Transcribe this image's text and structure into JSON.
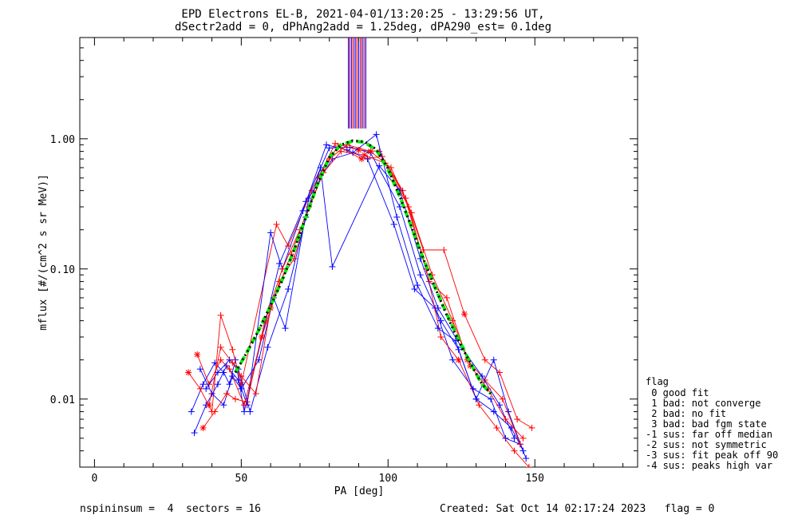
{
  "chart_data": {
    "type": "line",
    "title": "EPD Electrons EL-B, 2021-04-01/13:20:25 - 13:29:56 UT,",
    "subtitle": "dSectr2add = 0, dPhAng2add = 1.25deg, dPA290_est=   0.1deg",
    "xlabel": "PA [deg]",
    "ylabel": "mflux [#/(cm^2 s sr MeV)]",
    "xlim": [
      -5,
      185
    ],
    "ylim": [
      0.003,
      6
    ],
    "yscale": "log",
    "xticks": [
      0,
      50,
      100,
      150
    ],
    "xtick_labels": [
      "0",
      "50",
      "100",
      "150"
    ],
    "yticks": [
      0.01,
      0.1,
      1.0
    ],
    "ytick_labels": [
      "0.01",
      "0.10",
      "1.00"
    ],
    "grid": false,
    "colors": {
      "blue": "#0000ff",
      "red": "#ff0000",
      "green": "#00ee00",
      "black": "#000000"
    },
    "series": [
      {
        "color": "blue",
        "x": [
          33,
          37,
          41,
          44,
          46,
          48,
          51,
          63,
          72,
          80,
          87,
          94,
          104,
          111,
          118,
          124,
          130,
          136,
          142,
          146
        ],
        "y": [
          0.008,
          0.013,
          0.019,
          0.016,
          0.013,
          0.02,
          0.008,
          0.11,
          0.33,
          0.85,
          0.86,
          0.78,
          0.3,
          0.09,
          0.04,
          0.024,
          0.01,
          0.008,
          0.006,
          0.004
        ]
      },
      {
        "color": "red",
        "x": [
          32,
          36,
          40,
          43,
          47,
          50,
          62,
          66,
          74,
          82,
          90,
          97,
          106,
          112,
          119,
          126,
          133,
          138,
          144,
          149
        ],
        "y": [
          0.016,
          0.012,
          0.008,
          0.044,
          0.024,
          0.013,
          0.22,
          0.15,
          0.4,
          0.92,
          0.82,
          0.8,
          0.35,
          0.14,
          0.14,
          0.045,
          0.02,
          0.016,
          0.007,
          0.006
        ]
      },
      {
        "color": "blue",
        "x": [
          34,
          38,
          42,
          45,
          49,
          52,
          60,
          64,
          71,
          79,
          86,
          93,
          102,
          109,
          116,
          122,
          129,
          135,
          140,
          145
        ],
        "y": [
          0.0055,
          0.009,
          0.013,
          0.018,
          0.014,
          0.009,
          0.19,
          0.1,
          0.28,
          0.9,
          0.82,
          0.7,
          0.22,
          0.07,
          0.05,
          0.02,
          0.012,
          0.01,
          0.005,
          0.0045
        ]
      },
      {
        "color": "red",
        "x": [
          35,
          39,
          43,
          46,
          51,
          57,
          63,
          68,
          76,
          83,
          91,
          98,
          105,
          113,
          118,
          124,
          131,
          137,
          143,
          148
        ],
        "y": [
          0.022,
          0.013,
          0.02,
          0.017,
          0.009,
          0.03,
          0.08,
          0.12,
          0.5,
          0.88,
          0.7,
          0.73,
          0.4,
          0.1,
          0.03,
          0.02,
          0.009,
          0.006,
          0.004,
          0.003
        ]
      },
      {
        "color": "blue",
        "x": [
          36,
          40,
          44,
          47,
          50,
          56,
          61,
          65,
          73,
          81,
          88,
          96,
          103,
          110,
          117,
          123,
          130,
          136,
          141,
          147
        ],
        "y": [
          0.017,
          0.011,
          0.009,
          0.015,
          0.012,
          0.02,
          0.06,
          0.035,
          0.35,
          0.7,
          0.78,
          1.08,
          0.25,
          0.075,
          0.035,
          0.028,
          0.01,
          0.02,
          0.008,
          0.0035
        ]
      },
      {
        "color": "red",
        "x": [
          37,
          41,
          45,
          48,
          52,
          58,
          64,
          70,
          78,
          84,
          92,
          99,
          107,
          114,
          120,
          127,
          133,
          139,
          145
        ],
        "y": [
          0.006,
          0.008,
          0.011,
          0.01,
          0.0095,
          0.04,
          0.1,
          0.2,
          0.55,
          0.8,
          0.75,
          0.65,
          0.3,
          0.08,
          0.06,
          0.02,
          0.014,
          0.01,
          0.0045
        ]
      },
      {
        "color": "blue",
        "x": [
          38,
          42,
          46,
          49,
          53,
          59,
          66,
          72,
          77,
          81,
          97,
          104,
          111,
          117,
          125,
          132,
          138,
          143
        ],
        "y": [
          0.012,
          0.016,
          0.02,
          0.017,
          0.008,
          0.025,
          0.07,
          0.25,
          0.6,
          0.104,
          0.62,
          0.4,
          0.12,
          0.05,
          0.025,
          0.015,
          0.009,
          0.005
        ]
      },
      {
        "color": "red",
        "x": [
          39,
          43,
          47,
          50,
          55,
          60,
          67,
          73,
          80,
          86,
          94,
          101,
          108,
          115,
          122,
          128,
          134,
          140,
          146
        ],
        "y": [
          0.009,
          0.025,
          0.019,
          0.015,
          0.011,
          0.05,
          0.13,
          0.3,
          0.7,
          0.9,
          0.8,
          0.6,
          0.27,
          0.09,
          0.04,
          0.018,
          0.012,
          0.007,
          0.005
        ]
      },
      {
        "color": "green",
        "x": [
          48,
          52,
          56,
          60,
          64,
          68,
          72,
          76,
          80,
          84,
          88,
          92,
          96,
          100,
          104,
          108,
          112,
          116,
          120,
          124,
          128,
          132,
          135
        ],
        "y": [
          0.016,
          0.023,
          0.034,
          0.052,
          0.083,
          0.14,
          0.25,
          0.45,
          0.72,
          0.9,
          0.96,
          0.94,
          0.82,
          0.58,
          0.36,
          0.21,
          0.12,
          0.072,
          0.045,
          0.029,
          0.019,
          0.013,
          0.011
        ]
      },
      {
        "color": "black",
        "x": [
          48,
          52,
          56,
          60,
          64,
          68,
          72,
          76,
          80,
          84,
          88,
          92,
          96,
          100,
          104,
          108,
          112,
          116,
          120,
          124,
          128,
          132,
          135
        ],
        "y": [
          0.016,
          0.023,
          0.034,
          0.052,
          0.082,
          0.14,
          0.25,
          0.45,
          0.72,
          0.9,
          0.97,
          0.95,
          0.83,
          0.59,
          0.36,
          0.21,
          0.12,
          0.072,
          0.044,
          0.028,
          0.019,
          0.013,
          0.011
        ]
      }
    ],
    "vertical_markers": [
      {
        "x": 86.5,
        "color": "blue"
      },
      {
        "x": 87,
        "color": "red"
      },
      {
        "x": 87.6,
        "color": "blue"
      },
      {
        "x": 88.2,
        "color": "red"
      },
      {
        "x": 88.8,
        "color": "blue"
      },
      {
        "x": 89.4,
        "color": "red"
      },
      {
        "x": 90,
        "color": "blue"
      },
      {
        "x": 90.6,
        "color": "red"
      },
      {
        "x": 91.2,
        "color": "blue"
      },
      {
        "x": 91.8,
        "color": "red"
      },
      {
        "x": 92.4,
        "color": "blue"
      }
    ],
    "marker_y_range": [
      1.2,
      6
    ]
  },
  "legend": {
    "title": "flag",
    "items": [
      " 0 good fit",
      " 1 bad: not converge",
      " 2 bad: no fit",
      " 3 bad: bad fgm state",
      "-1 sus: far off median",
      "-2 sus: not symmetric",
      "-3 sus: fit peak off 90",
      "-4 sus: peaks high var"
    ]
  },
  "footer": {
    "left": "nspininsum =  4  sectors = 16",
    "right": "Created: Sat Oct 14 02:17:24 2023   flag = 0"
  }
}
